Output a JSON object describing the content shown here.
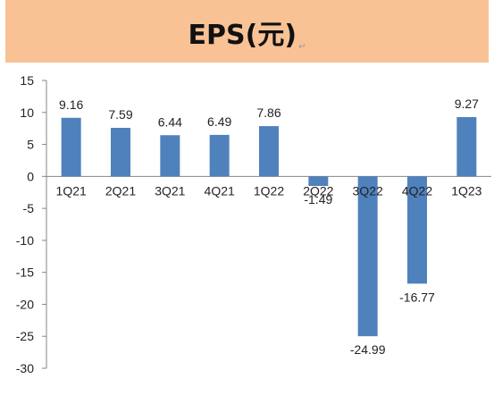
{
  "chart_data": {
    "type": "bar",
    "title": "EPS(元)",
    "title_mark": "↵",
    "categories": [
      "1Q21",
      "2Q21",
      "3Q21",
      "4Q21",
      "1Q22",
      "2Q22",
      "3Q22",
      "4Q22",
      "1Q23"
    ],
    "values": [
      9.16,
      7.59,
      6.44,
      6.49,
      7.86,
      -1.49,
      -24.99,
      -16.77,
      9.27
    ],
    "data_labels": [
      "9.16",
      "7.59",
      "6.44",
      "6.49",
      "7.86",
      "-1.49",
      "-24.99",
      "-16.77",
      "9.27"
    ],
    "ylim": [
      -30,
      15
    ],
    "yticks": [
      15,
      10,
      5,
      0,
      -5,
      -10,
      -15,
      -20,
      -25,
      -30
    ],
    "xlabel": "",
    "ylabel": "",
    "grid": false,
    "legend": "none",
    "bar_color": "#4f81bd",
    "title_band_color": "#f8c295"
  }
}
